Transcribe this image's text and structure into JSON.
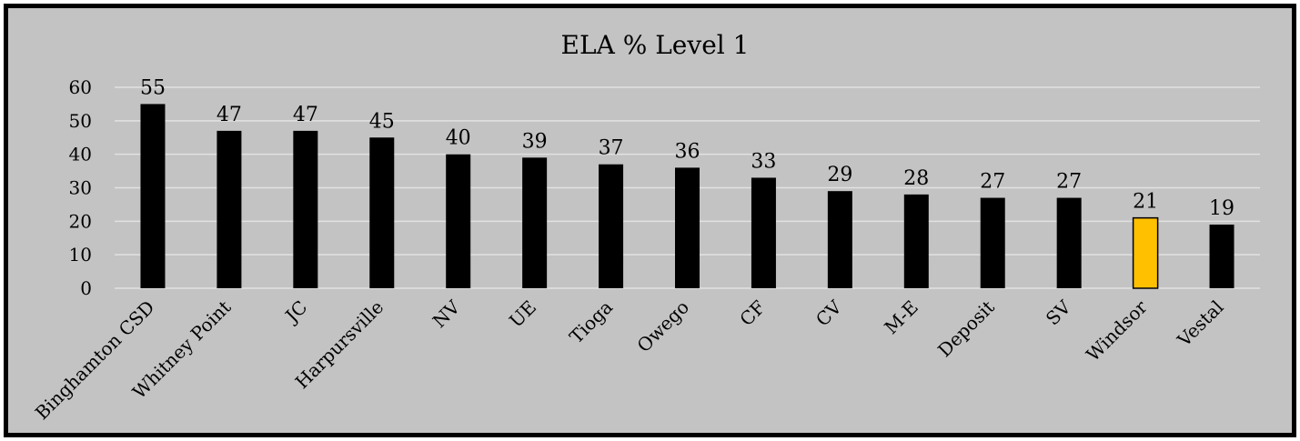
{
  "chart_data": {
    "type": "bar",
    "title": "ELA % Level 1",
    "categories": [
      "Binghamton CSD",
      "Whitney Point",
      "JC",
      "Harpursville",
      "NV",
      "UE",
      "Tioga",
      "Owego",
      "CF",
      "CV",
      "M-E",
      "Deposit",
      "SV",
      "Windsor",
      "Vestal"
    ],
    "values": [
      55,
      47,
      47,
      45,
      40,
      39,
      37,
      36,
      33,
      29,
      28,
      27,
      27,
      21,
      19
    ],
    "data_labels": [
      "55",
      "47",
      "47",
      "45",
      "40",
      "39",
      "37",
      "36",
      "33",
      "29",
      "28",
      "27",
      "27",
      "21",
      "19"
    ],
    "yticks": [
      "0",
      "10",
      "20",
      "30",
      "40",
      "50",
      "60"
    ],
    "ylim": [
      0,
      60
    ],
    "grid": true,
    "legend": "none",
    "colors": {
      "bar": "#000000",
      "highlight": "#ffc000",
      "background": "#c3c3c3",
      "gridline": "#e2e2e2"
    },
    "highlight_category": "Windsor"
  }
}
